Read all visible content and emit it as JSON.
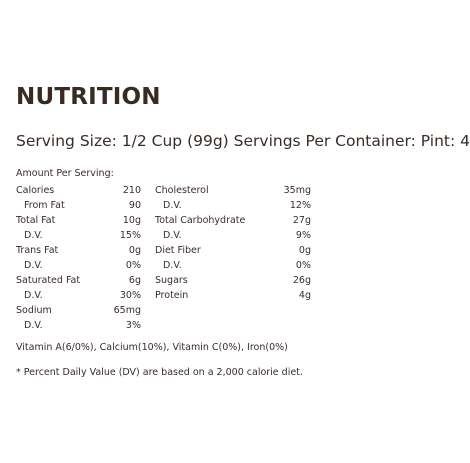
{
  "title": "NUTRITION",
  "serving_line": "Serving Size: 1/2 Cup (99g) Servings Per Container: Pint: 4",
  "amount_per_serving": "Amount Per Serving:",
  "left_column": [
    {
      "label": "Calories",
      "value": "210",
      "indent": false
    },
    {
      "label": "From Fat",
      "value": "90",
      "indent": true
    },
    {
      "label": "Total Fat",
      "value": "10g",
      "indent": false
    },
    {
      "label": "D.V.",
      "value": "15%",
      "indent": true
    },
    {
      "label": "Trans Fat",
      "value": "0g",
      "indent": false
    },
    {
      "label": "D.V.",
      "value": "0%",
      "indent": true
    },
    {
      "label": "Saturated Fat",
      "value": "6g",
      "indent": false
    },
    {
      "label": "D.V.",
      "value": "30%",
      "indent": true
    },
    {
      "label": "Sodium",
      "value": "65mg",
      "indent": false
    },
    {
      "label": "D.V.",
      "value": "3%",
      "indent": true
    }
  ],
  "right_column": [
    {
      "label": "Cholesterol",
      "value": "35mg",
      "indent": false
    },
    {
      "label": "D.V.",
      "value": "12%",
      "indent": true
    },
    {
      "label": "Total Carbohydrate",
      "value": "27g",
      "indent": false
    },
    {
      "label": "D.V.",
      "value": "9%",
      "indent": true
    },
    {
      "label": "Diet Fiber",
      "value": "0g",
      "indent": false
    },
    {
      "label": "D.V.",
      "value": "0%",
      "indent": true
    },
    {
      "label": "Sugars",
      "value": "26g",
      "indent": false
    },
    {
      "label": "Protein",
      "value": "4g",
      "indent": false
    }
  ],
  "vitamins": "Vitamin A(6/0%), Calcium(10%), Vitamin C(0%), Iron(0%)",
  "footnote": "* Percent Daily Value (DV) are based on a 2,000 calorie diet.",
  "colors": {
    "text": "#3a2c27",
    "background": "#ffffff"
  }
}
